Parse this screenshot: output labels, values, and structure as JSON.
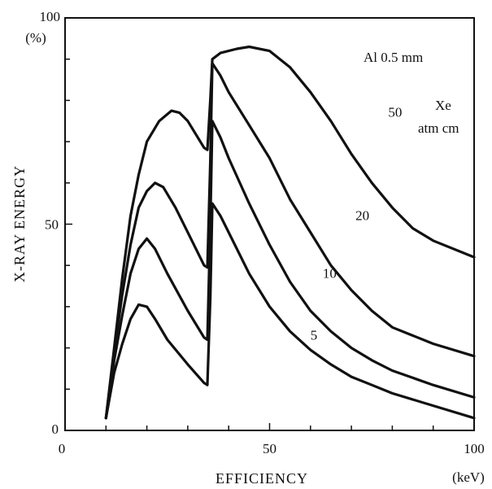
{
  "chart_data": {
    "type": "line",
    "title": "",
    "xlabel": "EFFICIENCY",
    "xunit": "(keV)",
    "ylabel": "X-RAY ENERGY",
    "yunit": "(%)",
    "xlim": [
      0,
      100
    ],
    "ylim": [
      0,
      100
    ],
    "x_ticks": [
      0,
      50,
      100
    ],
    "y_ticks": [
      0,
      50,
      100
    ],
    "grid": false,
    "annotation_filter": "Al 0.5 mm",
    "annotation_gas": "Xe",
    "annotation_gas_unit": "atm cm",
    "series": [
      {
        "name": "5",
        "points": [
          [
            10,
            3
          ],
          [
            12,
            14
          ],
          [
            14,
            21
          ],
          [
            16,
            27
          ],
          [
            18,
            30.5
          ],
          [
            20,
            30
          ],
          [
            22,
            27
          ],
          [
            25,
            22
          ],
          [
            30,
            16
          ],
          [
            34,
            11.5
          ],
          [
            34.8,
            11
          ],
          [
            35.5,
            32
          ],
          [
            36,
            55
          ],
          [
            38,
            52
          ],
          [
            40,
            48
          ],
          [
            45,
            38
          ],
          [
            50,
            30
          ],
          [
            55,
            24
          ],
          [
            60,
            19.5
          ],
          [
            65,
            16
          ],
          [
            70,
            13
          ],
          [
            75,
            11
          ],
          [
            80,
            9
          ],
          [
            90,
            6
          ],
          [
            100,
            3
          ]
        ]
      },
      {
        "name": "10",
        "points": [
          [
            10,
            3
          ],
          [
            12,
            17
          ],
          [
            14,
            28
          ],
          [
            16,
            38
          ],
          [
            18,
            44
          ],
          [
            20,
            46.5
          ],
          [
            22,
            44
          ],
          [
            25,
            38
          ],
          [
            30,
            29
          ],
          [
            34,
            22.5
          ],
          [
            34.8,
            22
          ],
          [
            35.5,
            50
          ],
          [
            36,
            75
          ],
          [
            38,
            71
          ],
          [
            40,
            66
          ],
          [
            45,
            55
          ],
          [
            50,
            45
          ],
          [
            55,
            36
          ],
          [
            60,
            29
          ],
          [
            65,
            24
          ],
          [
            70,
            20
          ],
          [
            75,
            17
          ],
          [
            80,
            14.5
          ],
          [
            90,
            11
          ],
          [
            100,
            8
          ]
        ]
      },
      {
        "name": "20",
        "points": [
          [
            10,
            3
          ],
          [
            12,
            19
          ],
          [
            14,
            33
          ],
          [
            16,
            45
          ],
          [
            18,
            54
          ],
          [
            20,
            58
          ],
          [
            22,
            60
          ],
          [
            24,
            59
          ],
          [
            27,
            54
          ],
          [
            30,
            48
          ],
          [
            34,
            40
          ],
          [
            34.8,
            39.5
          ],
          [
            35.5,
            65
          ],
          [
            36,
            89
          ],
          [
            38,
            86
          ],
          [
            40,
            82
          ],
          [
            45,
            74
          ],
          [
            50,
            66
          ],
          [
            55,
            56
          ],
          [
            60,
            48
          ],
          [
            65,
            40
          ],
          [
            70,
            34
          ],
          [
            75,
            29
          ],
          [
            80,
            25
          ],
          [
            90,
            21
          ],
          [
            100,
            18
          ]
        ]
      },
      {
        "name": "50",
        "points": [
          [
            10,
            3
          ],
          [
            12,
            20
          ],
          [
            14,
            37
          ],
          [
            16,
            52
          ],
          [
            18,
            62
          ],
          [
            20,
            70
          ],
          [
            23,
            75
          ],
          [
            26,
            77.5
          ],
          [
            28,
            77
          ],
          [
            30,
            75
          ],
          [
            34,
            68.5
          ],
          [
            34.8,
            68
          ],
          [
            35.5,
            80
          ],
          [
            36,
            90
          ],
          [
            38,
            91.5
          ],
          [
            42,
            92.5
          ],
          [
            45,
            93
          ],
          [
            50,
            92
          ],
          [
            55,
            88
          ],
          [
            60,
            82
          ],
          [
            65,
            75
          ],
          [
            70,
            67
          ],
          [
            75,
            60
          ],
          [
            80,
            54
          ],
          [
            85,
            49
          ],
          [
            90,
            46
          ],
          [
            100,
            42
          ]
        ]
      }
    ],
    "series_labels": [
      {
        "text": "50",
        "x": 79,
        "y": 76
      },
      {
        "text": "20",
        "x": 71,
        "y": 51
      },
      {
        "text": "10",
        "x": 63,
        "y": 37
      },
      {
        "text": "5",
        "x": 60,
        "y": 22
      }
    ]
  }
}
